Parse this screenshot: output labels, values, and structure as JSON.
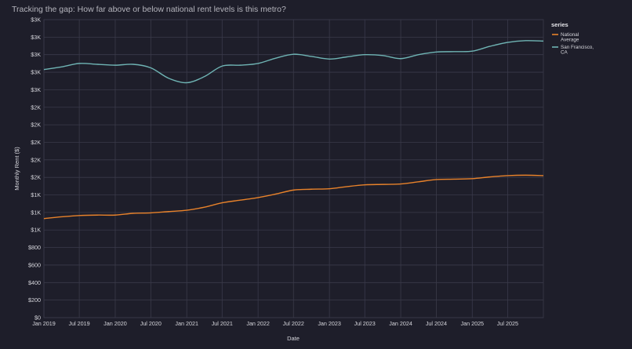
{
  "chart_data": {
    "type": "line",
    "title": "Tracking the gap: How far above or below national rent levels is this metro?",
    "xlabel": "Date",
    "ylabel": "Monthly Rent ($)",
    "xlim": [
      "2019-01-01",
      "2025-12-31"
    ],
    "ylim": [
      0,
      3400
    ],
    "x_ticks": [
      {
        "date": "2019-01-01",
        "label": "Jan 2019"
      },
      {
        "date": "2019-07-01",
        "label": "Jul 2019"
      },
      {
        "date": "2020-01-01",
        "label": "Jan 2020"
      },
      {
        "date": "2020-07-01",
        "label": "Jul 2020"
      },
      {
        "date": "2021-01-01",
        "label": "Jan 2021"
      },
      {
        "date": "2021-07-01",
        "label": "Jul 2021"
      },
      {
        "date": "2022-01-01",
        "label": "Jan 2022"
      },
      {
        "date": "2022-07-01",
        "label": "Jul 2022"
      },
      {
        "date": "2023-01-01",
        "label": "Jan 2023"
      },
      {
        "date": "2023-07-01",
        "label": "Jul 2023"
      },
      {
        "date": "2024-01-01",
        "label": "Jan 2024"
      },
      {
        "date": "2024-07-01",
        "label": "Jul 2024"
      },
      {
        "date": "2025-01-01",
        "label": "Jan 2025"
      },
      {
        "date": "2025-07-01",
        "label": "Jul 2025"
      }
    ],
    "y_ticks": [
      {
        "value": 0,
        "label": "$0"
      },
      {
        "value": 200,
        "label": "$200"
      },
      {
        "value": 400,
        "label": "$400"
      },
      {
        "value": 600,
        "label": "$600"
      },
      {
        "value": 800,
        "label": "$800"
      },
      {
        "value": 1000,
        "label": "$1K"
      },
      {
        "value": 1200,
        "label": "$1K"
      },
      {
        "value": 1400,
        "label": "$1K"
      },
      {
        "value": 1600,
        "label": "$2K"
      },
      {
        "value": 1800,
        "label": "$2K"
      },
      {
        "value": 2000,
        "label": "$2K"
      },
      {
        "value": 2200,
        "label": "$2K"
      },
      {
        "value": 2400,
        "label": "$2K"
      },
      {
        "value": 2600,
        "label": "$3K"
      },
      {
        "value": 2800,
        "label": "$3K"
      },
      {
        "value": 3000,
        "label": "$3K"
      },
      {
        "value": 3200,
        "label": "$3K"
      },
      {
        "value": 3400,
        "label": "$3K"
      }
    ],
    "grid": true,
    "legend": {
      "title": "series",
      "position": "top-right"
    },
    "series": [
      {
        "name": "National Average",
        "color": "#e8822a",
        "points": [
          [
            "2019-01-01",
            1130
          ],
          [
            "2019-04-01",
            1150
          ],
          [
            "2019-07-01",
            1165
          ],
          [
            "2019-10-01",
            1170
          ],
          [
            "2020-01-01",
            1170
          ],
          [
            "2020-04-01",
            1190
          ],
          [
            "2020-07-01",
            1195
          ],
          [
            "2020-10-01",
            1210
          ],
          [
            "2021-01-01",
            1225
          ],
          [
            "2021-04-01",
            1260
          ],
          [
            "2021-07-01",
            1310
          ],
          [
            "2021-10-01",
            1340
          ],
          [
            "2022-01-01",
            1370
          ],
          [
            "2022-04-01",
            1410
          ],
          [
            "2022-07-01",
            1455
          ],
          [
            "2022-10-01",
            1465
          ],
          [
            "2023-01-01",
            1470
          ],
          [
            "2023-04-01",
            1495
          ],
          [
            "2023-07-01",
            1515
          ],
          [
            "2023-10-01",
            1520
          ],
          [
            "2024-01-01",
            1525
          ],
          [
            "2024-04-01",
            1550
          ],
          [
            "2024-07-01",
            1575
          ],
          [
            "2024-10-01",
            1580
          ],
          [
            "2025-01-01",
            1585
          ],
          [
            "2025-04-01",
            1605
          ],
          [
            "2025-07-01",
            1620
          ],
          [
            "2025-10-01",
            1625
          ],
          [
            "2025-12-31",
            1620
          ]
        ]
      },
      {
        "name": "San Francisco, CA",
        "color": "#6fb4b4",
        "points": [
          [
            "2019-01-01",
            2830
          ],
          [
            "2019-04-01",
            2860
          ],
          [
            "2019-07-01",
            2900
          ],
          [
            "2019-10-01",
            2890
          ],
          [
            "2020-01-01",
            2880
          ],
          [
            "2020-04-01",
            2890
          ],
          [
            "2020-07-01",
            2850
          ],
          [
            "2020-10-01",
            2730
          ],
          [
            "2021-01-01",
            2680
          ],
          [
            "2021-04-01",
            2750
          ],
          [
            "2021-07-01",
            2870
          ],
          [
            "2021-10-01",
            2880
          ],
          [
            "2022-01-01",
            2900
          ],
          [
            "2022-04-01",
            2960
          ],
          [
            "2022-07-01",
            3005
          ],
          [
            "2022-10-01",
            2980
          ],
          [
            "2023-01-01",
            2950
          ],
          [
            "2023-04-01",
            2975
          ],
          [
            "2023-07-01",
            3000
          ],
          [
            "2023-10-01",
            2990
          ],
          [
            "2024-01-01",
            2955
          ],
          [
            "2024-04-01",
            3000
          ],
          [
            "2024-07-01",
            3030
          ],
          [
            "2024-10-01",
            3035
          ],
          [
            "2025-01-01",
            3040
          ],
          [
            "2025-04-01",
            3095
          ],
          [
            "2025-07-01",
            3140
          ],
          [
            "2025-10-01",
            3160
          ],
          [
            "2025-12-31",
            3155
          ]
        ]
      }
    ]
  }
}
